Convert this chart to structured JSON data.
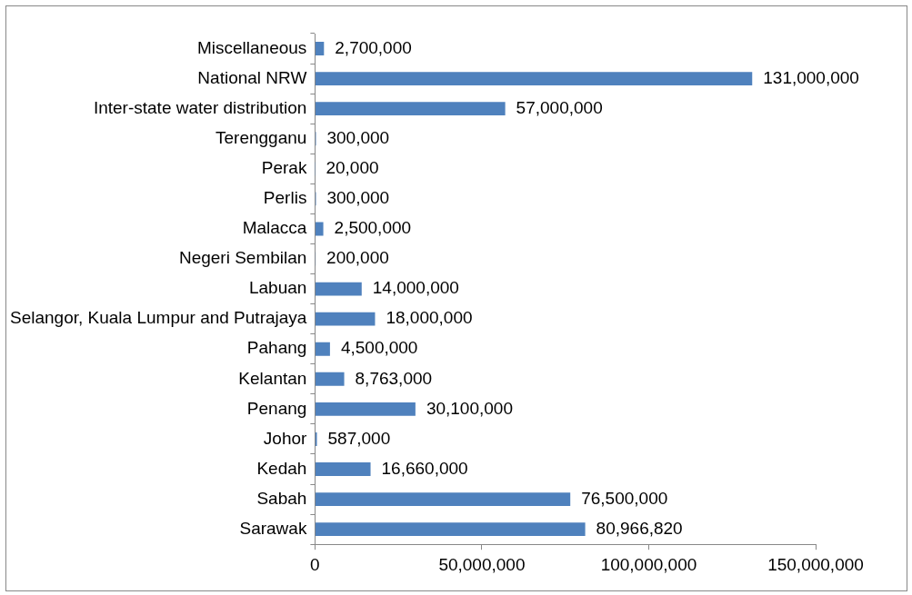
{
  "chart_data": {
    "type": "bar",
    "orientation": "horizontal",
    "categories": [
      "Miscellaneous",
      "National NRW",
      "Inter-state water distribution",
      "Terengganu",
      "Perak",
      "Perlis",
      "Malacca",
      "Negeri Sembilan",
      "Labuan",
      "Selangor, Kuala Lumpur and Putrajaya",
      "Pahang",
      "Kelantan",
      "Penang",
      "Johor",
      "Kedah",
      "Sabah",
      "Sarawak"
    ],
    "values": [
      2700000,
      131000000,
      57000000,
      300000,
      20000,
      300000,
      2500000,
      200000,
      14000000,
      18000000,
      4500000,
      8763000,
      30100000,
      587000,
      16660000,
      76500000,
      80966820
    ],
    "value_labels": [
      "2,700,000",
      "131,000,000",
      "57,000,000",
      "300,000",
      "20,000",
      "300,000",
      "2,500,000",
      "200,000",
      "14,000,000",
      "18,000,000",
      "4,500,000",
      "8,763,000",
      "30,100,000",
      "587,000",
      "16,660,000",
      "76,500,000",
      "80,966,820"
    ],
    "color": "#4f81bd",
    "xlim": [
      0,
      150000000
    ],
    "xticks": [
      0,
      {
        "value": 50000000,
        "label": "50,000,000"
      },
      {
        "value": 100000000,
        "label": "100,000,000"
      },
      {
        "value": 150000000,
        "label": "150,000,000"
      }
    ],
    "grid": false,
    "legend": false
  }
}
